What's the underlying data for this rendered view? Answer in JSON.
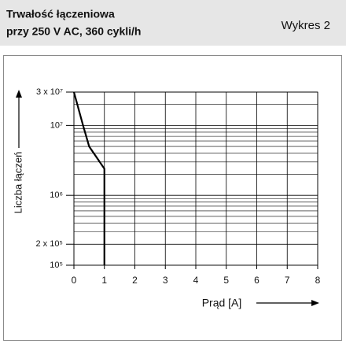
{
  "chart_data": {
    "type": "line",
    "title": "Trwałość łączeniowa",
    "subtitle": "przy 250 V AC, 360 cykli/h",
    "annotation": "Wykres 2",
    "x_label": "Prąd [A]",
    "y_label": "Liczba łączeń",
    "x": [
      0,
      0.3,
      0.5,
      1,
      1
    ],
    "series": [
      {
        "color": "#000000",
        "values": [
          30000000,
          10000000,
          5000000,
          2400000,
          100000
        ]
      }
    ],
    "xlim": [
      0,
      8
    ],
    "xticks": [
      0,
      1,
      2,
      3,
      4,
      5,
      6,
      7,
      8
    ],
    "ylim": [
      100000,
      30000000
    ],
    "yticks": [
      {
        "value": 100000,
        "label": "10⁵"
      },
      {
        "value": 200000,
        "label": "2 x 10⁵"
      },
      {
        "value": 1000000,
        "label": "10⁶"
      },
      {
        "value": 10000000,
        "label": "10⁷"
      },
      {
        "value": 30000000,
        "label": "3 x 10⁷"
      }
    ],
    "log_y": true,
    "grid": true,
    "minor_grid": true
  }
}
